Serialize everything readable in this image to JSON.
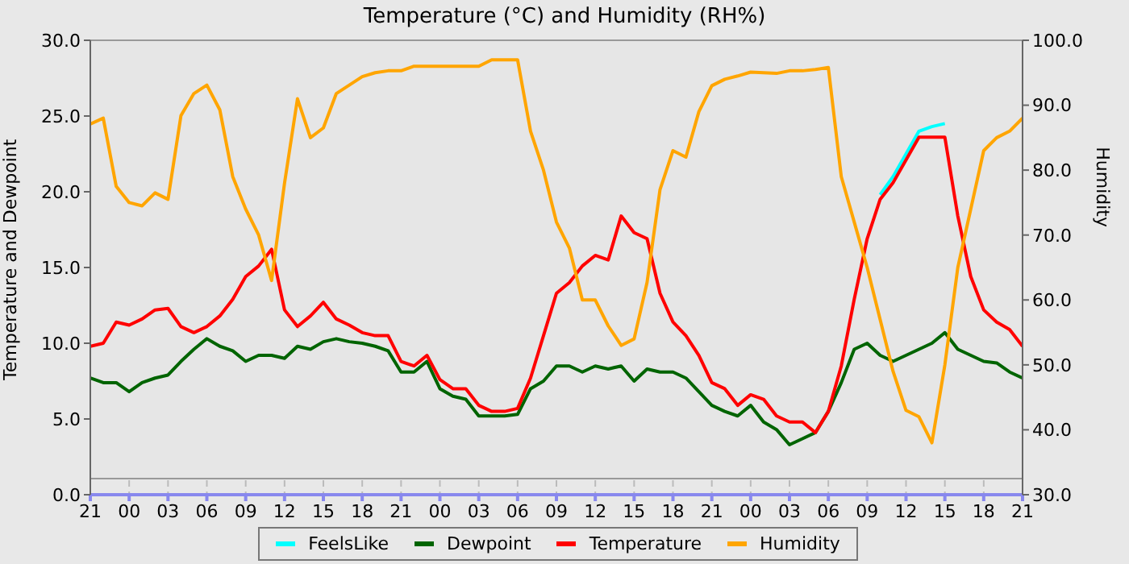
{
  "chart_data": {
    "type": "line",
    "title": "Temperature (°C) and Humidity (RH%)",
    "ylabel": "Temperature and Dewpoint",
    "y2label": "Humidity",
    "categories": [
      "21",
      null,
      null,
      "00",
      null,
      null,
      "03",
      null,
      null,
      "06",
      null,
      null,
      "09",
      null,
      null,
      "12",
      null,
      null,
      "15",
      null,
      null,
      "18",
      null,
      null,
      "21",
      null,
      null,
      "00",
      null,
      null,
      "03",
      null,
      null,
      "06",
      null,
      null,
      "09",
      null,
      null,
      "12",
      null,
      null,
      "15",
      null,
      null,
      "18",
      null,
      null,
      "21",
      null,
      null,
      "00",
      null,
      null,
      "03",
      null,
      null,
      "06",
      null,
      null,
      "09",
      null,
      null,
      "12",
      null,
      null,
      "15",
      null,
      null,
      "18",
      null,
      null,
      "21"
    ],
    "series": [
      {
        "name": "FeelsLike",
        "color": "#00ffff",
        "values": [
          null,
          null,
          null,
          null,
          null,
          null,
          null,
          null,
          null,
          null,
          null,
          null,
          null,
          null,
          null,
          null,
          null,
          null,
          null,
          null,
          null,
          null,
          null,
          null,
          null,
          null,
          null,
          null,
          null,
          null,
          null,
          null,
          null,
          null,
          null,
          null,
          null,
          null,
          null,
          null,
          null,
          null,
          null,
          null,
          null,
          null,
          null,
          null,
          null,
          null,
          null,
          null,
          null,
          null,
          null,
          null,
          null,
          null,
          null,
          null,
          null,
          19.8,
          21.0,
          22.5,
          24.0,
          24.3,
          24.5,
          null,
          null,
          null,
          null,
          null,
          null
        ]
      },
      {
        "name": "Dewpoint",
        "color": "#006400",
        "values": [
          7.7,
          7.4,
          7.4,
          6.8,
          7.4,
          7.7,
          7.9,
          8.8,
          9.6,
          10.3,
          9.8,
          9.5,
          8.8,
          9.2,
          9.2,
          9.0,
          9.8,
          9.6,
          10.1,
          10.3,
          10.1,
          10.0,
          9.8,
          9.5,
          8.1,
          8.1,
          8.8,
          7.0,
          6.5,
          6.3,
          5.2,
          5.2,
          5.2,
          5.3,
          7.0,
          7.5,
          8.5,
          8.5,
          8.1,
          8.5,
          8.3,
          8.5,
          7.5,
          8.3,
          8.1,
          8.1,
          7.7,
          6.8,
          5.9,
          5.5,
          5.2,
          5.9,
          4.8,
          4.3,
          3.3,
          3.7,
          4.1,
          5.5,
          7.4,
          9.6,
          10.0,
          9.2,
          8.8,
          9.2,
          9.6,
          10.0,
          10.7,
          9.6,
          9.2,
          8.8,
          8.7,
          8.1,
          7.7
        ]
      },
      {
        "name": "Temperature",
        "color": "#ff0000",
        "values": [
          9.8,
          10.0,
          11.4,
          11.2,
          11.6,
          12.2,
          12.3,
          11.1,
          10.7,
          11.1,
          11.8,
          12.9,
          14.4,
          15.1,
          16.2,
          12.2,
          11.1,
          11.8,
          12.7,
          11.6,
          11.2,
          10.7,
          10.5,
          10.5,
          8.8,
          8.5,
          9.2,
          7.6,
          7.0,
          7.0,
          5.9,
          5.5,
          5.5,
          5.7,
          7.7,
          10.5,
          13.3,
          14.0,
          15.1,
          15.8,
          15.5,
          18.4,
          17.3,
          16.9,
          13.3,
          11.4,
          10.5,
          9.2,
          7.4,
          7.0,
          5.9,
          6.6,
          6.3,
          5.2,
          4.8,
          4.8,
          4.1,
          5.5,
          8.5,
          12.9,
          16.9,
          19.5,
          20.6,
          22.1,
          23.6,
          23.6,
          23.6,
          18.4,
          14.4,
          12.2,
          11.4,
          10.9,
          9.8
        ]
      },
      {
        "name": "Humidity",
        "color": "#ffa500",
        "axis": "y2",
        "values": [
          87.1,
          88.0,
          77.5,
          75.0,
          74.5,
          76.5,
          75.5,
          88.4,
          91.8,
          93.1,
          89.3,
          79.0,
          74.0,
          70.0,
          63.0,
          78.0,
          91.0,
          85.0,
          86.5,
          91.8,
          93.1,
          94.4,
          95.0,
          95.3,
          95.3,
          96.0,
          96.0,
          96.0,
          96.0,
          96.0,
          96.0,
          97.0,
          97.0,
          97.0,
          86.0,
          80.0,
          72.0,
          68.0,
          60.0,
          60.0,
          56.0,
          53.0,
          54.0,
          62.7,
          77.0,
          83.0,
          82.0,
          89.0,
          93.0,
          94.0,
          94.5,
          95.1,
          95.0,
          94.9,
          95.3,
          95.3,
          95.5,
          95.8,
          79.0,
          72.0,
          65.0,
          57.0,
          49.0,
          43.0,
          42.0,
          38.0,
          50.0,
          65.0,
          74.0,
          83.0,
          85.0,
          86.0,
          88.0
        ]
      }
    ],
    "ylim": [
      0,
      30
    ],
    "yticks": [
      {
        "value": 0,
        "label": "0.0"
      },
      {
        "value": 5,
        "label": "5.0"
      },
      {
        "value": 10,
        "label": "10.0"
      },
      {
        "value": 15,
        "label": "15.0"
      },
      {
        "value": 20,
        "label": "20.0"
      },
      {
        "value": 25,
        "label": "25.0"
      },
      {
        "value": 30,
        "label": "30.0"
      }
    ],
    "y2lim": [
      30,
      100
    ],
    "y2ticks": [
      {
        "value": 30,
        "label": "30.0"
      },
      {
        "value": 40,
        "label": "40.0"
      },
      {
        "value": 50,
        "label": "50.0"
      },
      {
        "value": 60,
        "label": "60.0"
      },
      {
        "value": 70,
        "label": "70.0"
      },
      {
        "value": 80,
        "label": "80.0"
      },
      {
        "value": 90,
        "label": "90.0"
      },
      {
        "value": 100,
        "label": "100.0"
      }
    ],
    "grid": true,
    "legend": "bottom",
    "marker": "none",
    "line_style": "solid"
  }
}
